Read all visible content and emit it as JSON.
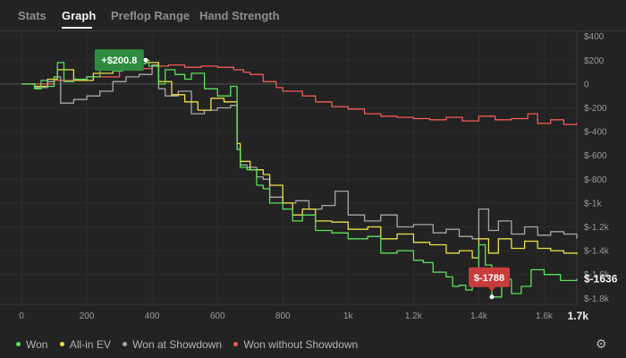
{
  "tabs": [
    {
      "label": "Stats",
      "active": false
    },
    {
      "label": "Graph",
      "active": true
    },
    {
      "label": "Preflop Range",
      "active": false
    },
    {
      "label": "Hand Strength",
      "active": false
    }
  ],
  "legend": [
    {
      "label": "Won",
      "color": "#5de05d"
    },
    {
      "label": "All-in EV",
      "color": "#eee04a"
    },
    {
      "label": "Won at Showdown",
      "color": "#a8a8a8"
    },
    {
      "label": "Won without Showdown",
      "color": "#f15a5a"
    }
  ],
  "settings_icon": "gear-icon",
  "chart_data": {
    "type": "line",
    "x_ticks": [
      "0",
      "200",
      "400",
      "600",
      "800",
      "1k",
      "1.2k",
      "1.4k",
      "1.6k"
    ],
    "x_max_label": "1.7k",
    "y_ticks": [
      "$400",
      "$200",
      "0",
      "$-200",
      "$-400",
      "$-600",
      "$-800",
      "$-1k",
      "$-1.2k",
      "$-1.4k",
      "$-1.6k",
      "$-1.8k"
    ],
    "xlim": [
      0,
      1700
    ],
    "ylim": [
      -1850,
      450
    ],
    "grid": true,
    "legend_position": "bottom",
    "peak_label": "+$200.8",
    "low_label": "$-1788",
    "end_label": "$-1636",
    "series": [
      {
        "name": "Won",
        "color": "#5de05d",
        "x": [
          0,
          40,
          60,
          80,
          100,
          110,
          130,
          160,
          200,
          240,
          280,
          310,
          340,
          380,
          390,
          420,
          440,
          470,
          500,
          520,
          560,
          600,
          640,
          660,
          670,
          690,
          720,
          740,
          760,
          800,
          830,
          860,
          900,
          950,
          1000,
          1060,
          1100,
          1150,
          1200,
          1230,
          1260,
          1300,
          1320,
          1340,
          1360,
          1380,
          1400,
          1420,
          1440,
          1470,
          1500,
          1530,
          1560,
          1600,
          1650,
          1700
        ],
        "y": [
          0,
          -40,
          30,
          -20,
          60,
          180,
          20,
          40,
          60,
          120,
          110,
          160,
          170,
          200.8,
          150,
          0,
          120,
          80,
          40,
          90,
          -40,
          -100,
          -20,
          -550,
          -700,
          -720,
          -850,
          -880,
          -1000,
          -1050,
          -1150,
          -1100,
          -1230,
          -1250,
          -1300,
          -1280,
          -1420,
          -1400,
          -1480,
          -1500,
          -1580,
          -1620,
          -1700,
          -1690,
          -1730,
          -1650,
          -1350,
          -1520,
          -1788,
          -1640,
          -1760,
          -1700,
          -1560,
          -1600,
          -1650,
          -1636
        ]
      },
      {
        "name": "All-in EV",
        "color": "#eee04a",
        "x": [
          0,
          40,
          80,
          110,
          160,
          220,
          280,
          340,
          380,
          420,
          460,
          500,
          540,
          580,
          620,
          660,
          670,
          700,
          740,
          760,
          800,
          830,
          860,
          900,
          950,
          1000,
          1060,
          1100,
          1150,
          1200,
          1250,
          1300,
          1340,
          1380,
          1400,
          1430,
          1460,
          1500,
          1540,
          1580,
          1620,
          1660,
          1700
        ],
        "y": [
          0,
          -20,
          40,
          120,
          30,
          90,
          140,
          170,
          180,
          20,
          -90,
          -150,
          -220,
          -120,
          -150,
          -500,
          -650,
          -720,
          -760,
          -850,
          -1000,
          -1100,
          -1050,
          -1150,
          -1160,
          -1220,
          -1200,
          -1300,
          -1260,
          -1330,
          -1350,
          -1420,
          -1400,
          -1460,
          -1300,
          -1420,
          -1300,
          -1380,
          -1320,
          -1380,
          -1400,
          -1420,
          -1430
        ]
      },
      {
        "name": "Won at Showdown",
        "color": "#a8a8a8",
        "x": [
          0,
          40,
          80,
          100,
          120,
          160,
          200,
          240,
          280,
          320,
          360,
          400,
          420,
          440,
          480,
          520,
          560,
          600,
          640,
          660,
          670,
          690,
          720,
          740,
          760,
          800,
          840,
          880,
          920,
          960,
          1000,
          1050,
          1100,
          1150,
          1200,
          1260,
          1300,
          1340,
          1380,
          1400,
          1430,
          1460,
          1500,
          1540,
          1580,
          1620,
          1660,
          1700
        ],
        "y": [
          0,
          -30,
          20,
          60,
          -160,
          -130,
          -100,
          -60,
          20,
          60,
          80,
          160,
          -40,
          -100,
          -60,
          -250,
          -220,
          -200,
          -180,
          -550,
          -680,
          -700,
          -780,
          -800,
          -950,
          -1000,
          -980,
          -1050,
          -1020,
          -900,
          -1100,
          -1150,
          -1100,
          -1200,
          -1180,
          -1250,
          -1220,
          -1280,
          -1300,
          -1050,
          -1230,
          -1150,
          -1260,
          -1200,
          -1270,
          -1240,
          -1260,
          -1300
        ]
      },
      {
        "name": "Won without Showdown",
        "color": "#f15a5a",
        "x": [
          0,
          100,
          200,
          300,
          400,
          450,
          500,
          550,
          600,
          650,
          680,
          700,
          740,
          780,
          800,
          860,
          900,
          950,
          1000,
          1050,
          1100,
          1150,
          1200,
          1250,
          1300,
          1350,
          1400,
          1450,
          1500,
          1550,
          1580,
          1620,
          1660,
          1700
        ],
        "y": [
          0,
          30,
          60,
          130,
          150,
          160,
          140,
          150,
          140,
          120,
          100,
          80,
          20,
          -30,
          -60,
          -100,
          -150,
          -190,
          -210,
          -250,
          -270,
          -280,
          -290,
          -300,
          -280,
          -310,
          -270,
          -300,
          -290,
          -250,
          -330,
          -300,
          -340,
          -330
        ]
      }
    ]
  }
}
